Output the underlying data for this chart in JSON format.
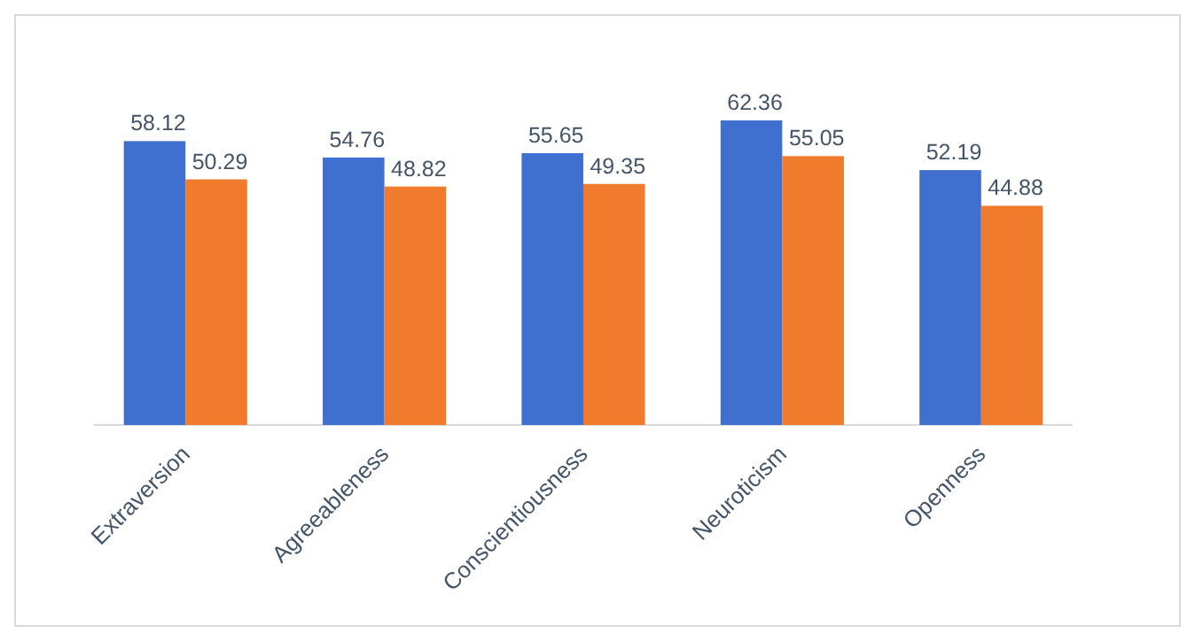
{
  "chart_data": {
    "type": "bar",
    "categories": [
      "Extraversion",
      "Agreeableness",
      "Conscientiousness",
      "Neuroticism",
      "Openness"
    ],
    "series": [
      {
        "color": "#3f6fcf",
        "values": [
          58.12,
          54.76,
          55.65,
          62.36,
          52.19
        ]
      },
      {
        "color": "#f07b2c",
        "values": [
          50.29,
          48.82,
          49.35,
          55.05,
          44.88
        ]
      }
    ],
    "data_labels": true
  }
}
